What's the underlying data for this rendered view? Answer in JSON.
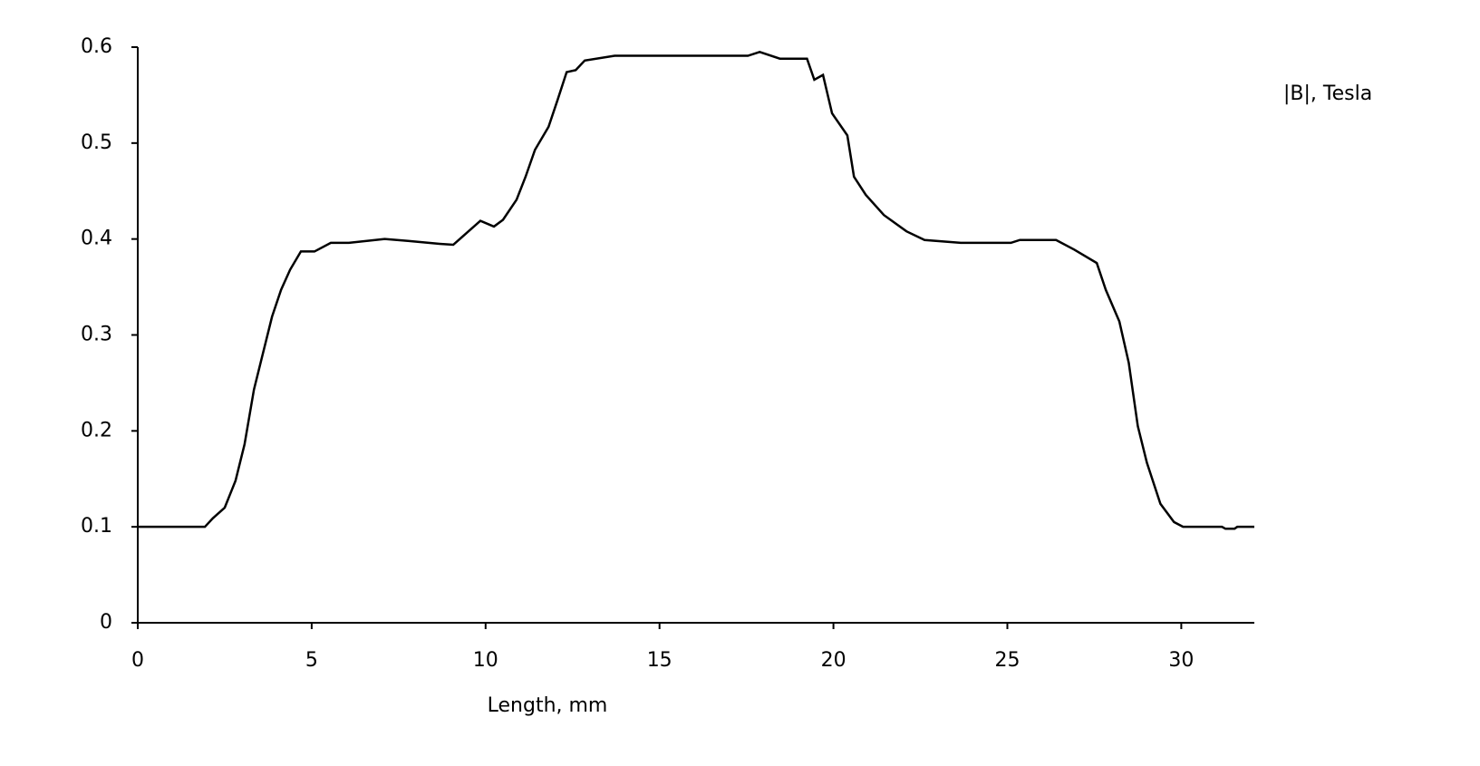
{
  "chart_data": {
    "type": "line",
    "x_label": "Length, mm",
    "y_label": "|B|, Tesla",
    "x": [
      0,
      1.93,
      2.16,
      2.5,
      2.81,
      3.07,
      3.34,
      3.6,
      3.86,
      4.12,
      4.38,
      4.69,
      5.08,
      5.55,
      6.07,
      7.1,
      7.77,
      8.68,
      9.07,
      9.85,
      10.24,
      10.5,
      10.89,
      11.15,
      11.42,
      11.81,
      12.07,
      12.33,
      12.59,
      12.85,
      13.71,
      17.54,
      17.88,
      18.46,
      19.24,
      19.45,
      19.7,
      19.96,
      20.4,
      20.59,
      20.93,
      21.45,
      22.1,
      22.62,
      23.66,
      25.1,
      25.36,
      26.4,
      26.92,
      27.57,
      27.83,
      28.22,
      28.49,
      28.75,
      29.01,
      29.4,
      29.79,
      30.05,
      31.17,
      31.27,
      31.53,
      31.61,
      32.1
    ],
    "values": [
      0.1,
      0.1,
      0.109,
      0.12,
      0.148,
      0.186,
      0.243,
      0.281,
      0.319,
      0.347,
      0.368,
      0.387,
      0.387,
      0.396,
      0.396,
      0.4,
      0.398,
      0.395,
      0.394,
      0.419,
      0.413,
      0.42,
      0.441,
      0.465,
      0.493,
      0.517,
      0.545,
      0.574,
      0.576,
      0.586,
      0.591,
      0.591,
      0.595,
      0.588,
      0.588,
      0.566,
      0.571,
      0.531,
      0.508,
      0.465,
      0.446,
      0.425,
      0.408,
      0.399,
      0.396,
      0.396,
      0.399,
      0.399,
      0.389,
      0.375,
      0.347,
      0.314,
      0.271,
      0.205,
      0.167,
      0.124,
      0.105,
      0.1,
      0.1,
      0.098,
      0.098,
      0.1,
      0.1
    ],
    "color": "#000000",
    "xlim": [
      0,
      32.1
    ],
    "xticks": [
      0,
      5,
      10,
      15,
      20,
      25,
      30
    ],
    "ylim": [
      0,
      0.6
    ],
    "yticks": [
      0,
      0.1,
      0.2,
      0.3,
      0.4,
      0.5,
      0.6
    ]
  }
}
